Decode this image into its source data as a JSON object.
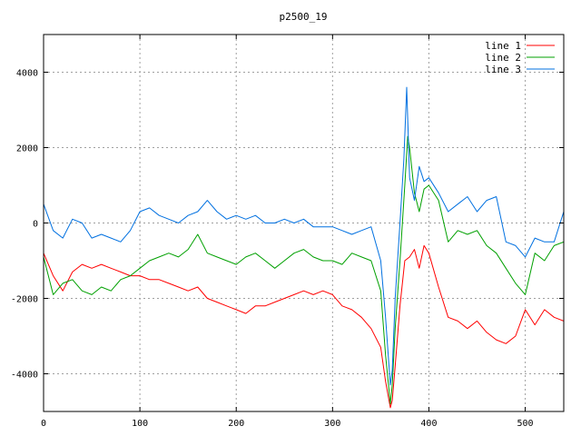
{
  "chart_data": {
    "type": "line",
    "title": "p2500_19",
    "xlabel": "",
    "ylabel": "",
    "xlim": [
      0,
      540
    ],
    "ylim": [
      -5000,
      5000
    ],
    "xticks": [
      0,
      100,
      200,
      300,
      400,
      500
    ],
    "yticks": [
      -4000,
      -2000,
      0,
      2000,
      4000
    ],
    "grid": true,
    "legend_position": "top-right",
    "series": [
      {
        "name": "line 1",
        "color": "#ff0000",
        "x": [
          0,
          10,
          20,
          30,
          40,
          50,
          60,
          70,
          80,
          90,
          100,
          110,
          120,
          130,
          140,
          150,
          160,
          170,
          180,
          190,
          200,
          210,
          220,
          230,
          240,
          250,
          260,
          270,
          280,
          290,
          300,
          310,
          320,
          330,
          340,
          350,
          355,
          360,
          362,
          365,
          370,
          375,
          380,
          385,
          390,
          395,
          400,
          410,
          420,
          430,
          440,
          450,
          460,
          470,
          480,
          490,
          500,
          510,
          520,
          530,
          540
        ],
        "values": [
          -800,
          -1400,
          -1800,
          -1300,
          -1100,
          -1200,
          -1100,
          -1200,
          -1300,
          -1400,
          -1400,
          -1500,
          -1500,
          -1600,
          -1700,
          -1800,
          -1700,
          -2000,
          -2100,
          -2200,
          -2300,
          -2400,
          -2200,
          -2200,
          -2100,
          -2000,
          -1900,
          -1800,
          -1900,
          -1800,
          -1900,
          -2200,
          -2300,
          -2500,
          -2800,
          -3300,
          -4200,
          -4900,
          -4700,
          -3800,
          -2200,
          -1000,
          -900,
          -700,
          -1200,
          -600,
          -800,
          -1700,
          -2500,
          -2600,
          -2800,
          -2600,
          -2900,
          -3100,
          -3200,
          -3000,
          -2300,
          -2700,
          -2300,
          -2500,
          -2600
        ]
      },
      {
        "name": "line 2",
        "color": "#00a000",
        "x": [
          0,
          10,
          20,
          30,
          40,
          50,
          60,
          70,
          80,
          90,
          100,
          110,
          120,
          130,
          140,
          150,
          160,
          170,
          180,
          190,
          200,
          210,
          220,
          230,
          240,
          250,
          260,
          270,
          280,
          290,
          300,
          310,
          320,
          330,
          340,
          350,
          355,
          360,
          362,
          365,
          370,
          375,
          378,
          380,
          385,
          390,
          395,
          400,
          410,
          420,
          430,
          440,
          450,
          460,
          470,
          480,
          490,
          500,
          510,
          520,
          530,
          540
        ],
        "values": [
          -900,
          -1900,
          -1600,
          -1500,
          -1800,
          -1900,
          -1700,
          -1800,
          -1500,
          -1400,
          -1200,
          -1000,
          -900,
          -800,
          -900,
          -700,
          -300,
          -800,
          -900,
          -1000,
          -1100,
          -900,
          -800,
          -1000,
          -1200,
          -1000,
          -800,
          -700,
          -900,
          -1000,
          -1000,
          -1100,
          -800,
          -900,
          -1000,
          -1800,
          -3500,
          -4800,
          -4300,
          -2800,
          -1000,
          1000,
          2300,
          2000,
          800,
          300,
          900,
          1000,
          600,
          -500,
          -200,
          -300,
          -200,
          -600,
          -800,
          -1200,
          -1600,
          -1900,
          -800,
          -1000,
          -600,
          -500
        ]
      },
      {
        "name": "line 3",
        "color": "#0070e0",
        "x": [
          0,
          10,
          20,
          30,
          40,
          50,
          60,
          70,
          80,
          90,
          100,
          110,
          120,
          130,
          140,
          150,
          160,
          170,
          180,
          190,
          200,
          210,
          220,
          230,
          240,
          250,
          260,
          270,
          280,
          290,
          300,
          310,
          320,
          330,
          340,
          350,
          355,
          360,
          362,
          365,
          370,
          374,
          377,
          380,
          385,
          390,
          395,
          400,
          410,
          420,
          430,
          440,
          450,
          460,
          470,
          480,
          490,
          500,
          510,
          520,
          530,
          540
        ],
        "values": [
          500,
          -200,
          -400,
          100,
          0,
          -400,
          -300,
          -400,
          -500,
          -200,
          300,
          400,
          200,
          100,
          0,
          200,
          300,
          600,
          300,
          100,
          200,
          100,
          200,
          0,
          0,
          100,
          0,
          100,
          -100,
          -100,
          -100,
          -200,
          -300,
          -200,
          -100,
          -1000,
          -2500,
          -4300,
          -3900,
          -2000,
          0,
          1700,
          3600,
          1200,
          600,
          1500,
          1100,
          1200,
          800,
          300,
          500,
          700,
          300,
          600,
          700,
          -500,
          -600,
          -900,
          -400,
          -500,
          -500,
          300
        ]
      }
    ]
  }
}
